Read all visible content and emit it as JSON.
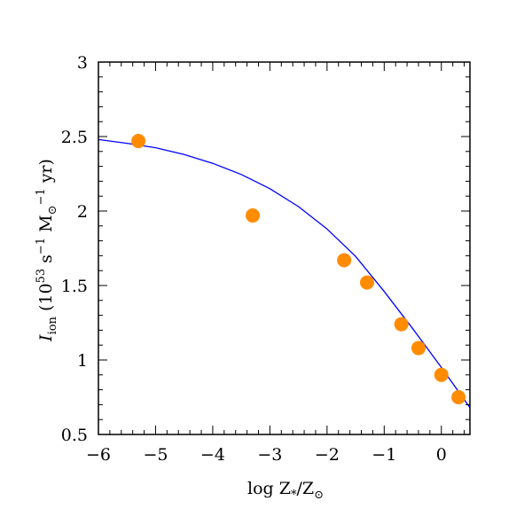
{
  "chart_data": {
    "type": "scatter",
    "xlabel": "log Z*/Z⊙",
    "ylabel": "I_ion (10^53 s^-1 M⊙^-1 yr)",
    "xlim": [
      -6,
      0.5
    ],
    "ylim": [
      0.5,
      3
    ],
    "x_ticks": [
      -6,
      -5,
      -4,
      -3,
      -2,
      -1,
      0
    ],
    "x_tick_labels": [
      "−6",
      "−5",
      "−4",
      "−3",
      "−2",
      "−1",
      "0"
    ],
    "y_ticks": [
      0.5,
      1,
      1.5,
      2,
      2.5,
      3
    ],
    "y_tick_labels": [
      "0.5",
      "1",
      "1.5",
      "2",
      "2.5",
      "3"
    ],
    "grid": false,
    "series": [
      {
        "kind": "points",
        "color": "#ff8c00",
        "x": [
          -5.3,
          -3.3,
          -1.7,
          -1.3,
          -0.7,
          -0.4,
          0.0,
          0.3
        ],
        "y": [
          2.47,
          1.97,
          1.67,
          1.52,
          1.24,
          1.08,
          0.9,
          0.75
        ]
      },
      {
        "kind": "line",
        "color": "#0000ff",
        "x": [
          -6.0,
          -5.5,
          -5.0,
          -4.5,
          -4.0,
          -3.5,
          -3.0,
          -2.5,
          -2.0,
          -1.5,
          -1.0,
          -0.5,
          0.0,
          0.5
        ],
        "y": [
          2.48,
          2.455,
          2.425,
          2.38,
          2.32,
          2.245,
          2.15,
          2.03,
          1.88,
          1.695,
          1.46,
          1.21,
          0.95,
          0.68
        ]
      }
    ]
  }
}
